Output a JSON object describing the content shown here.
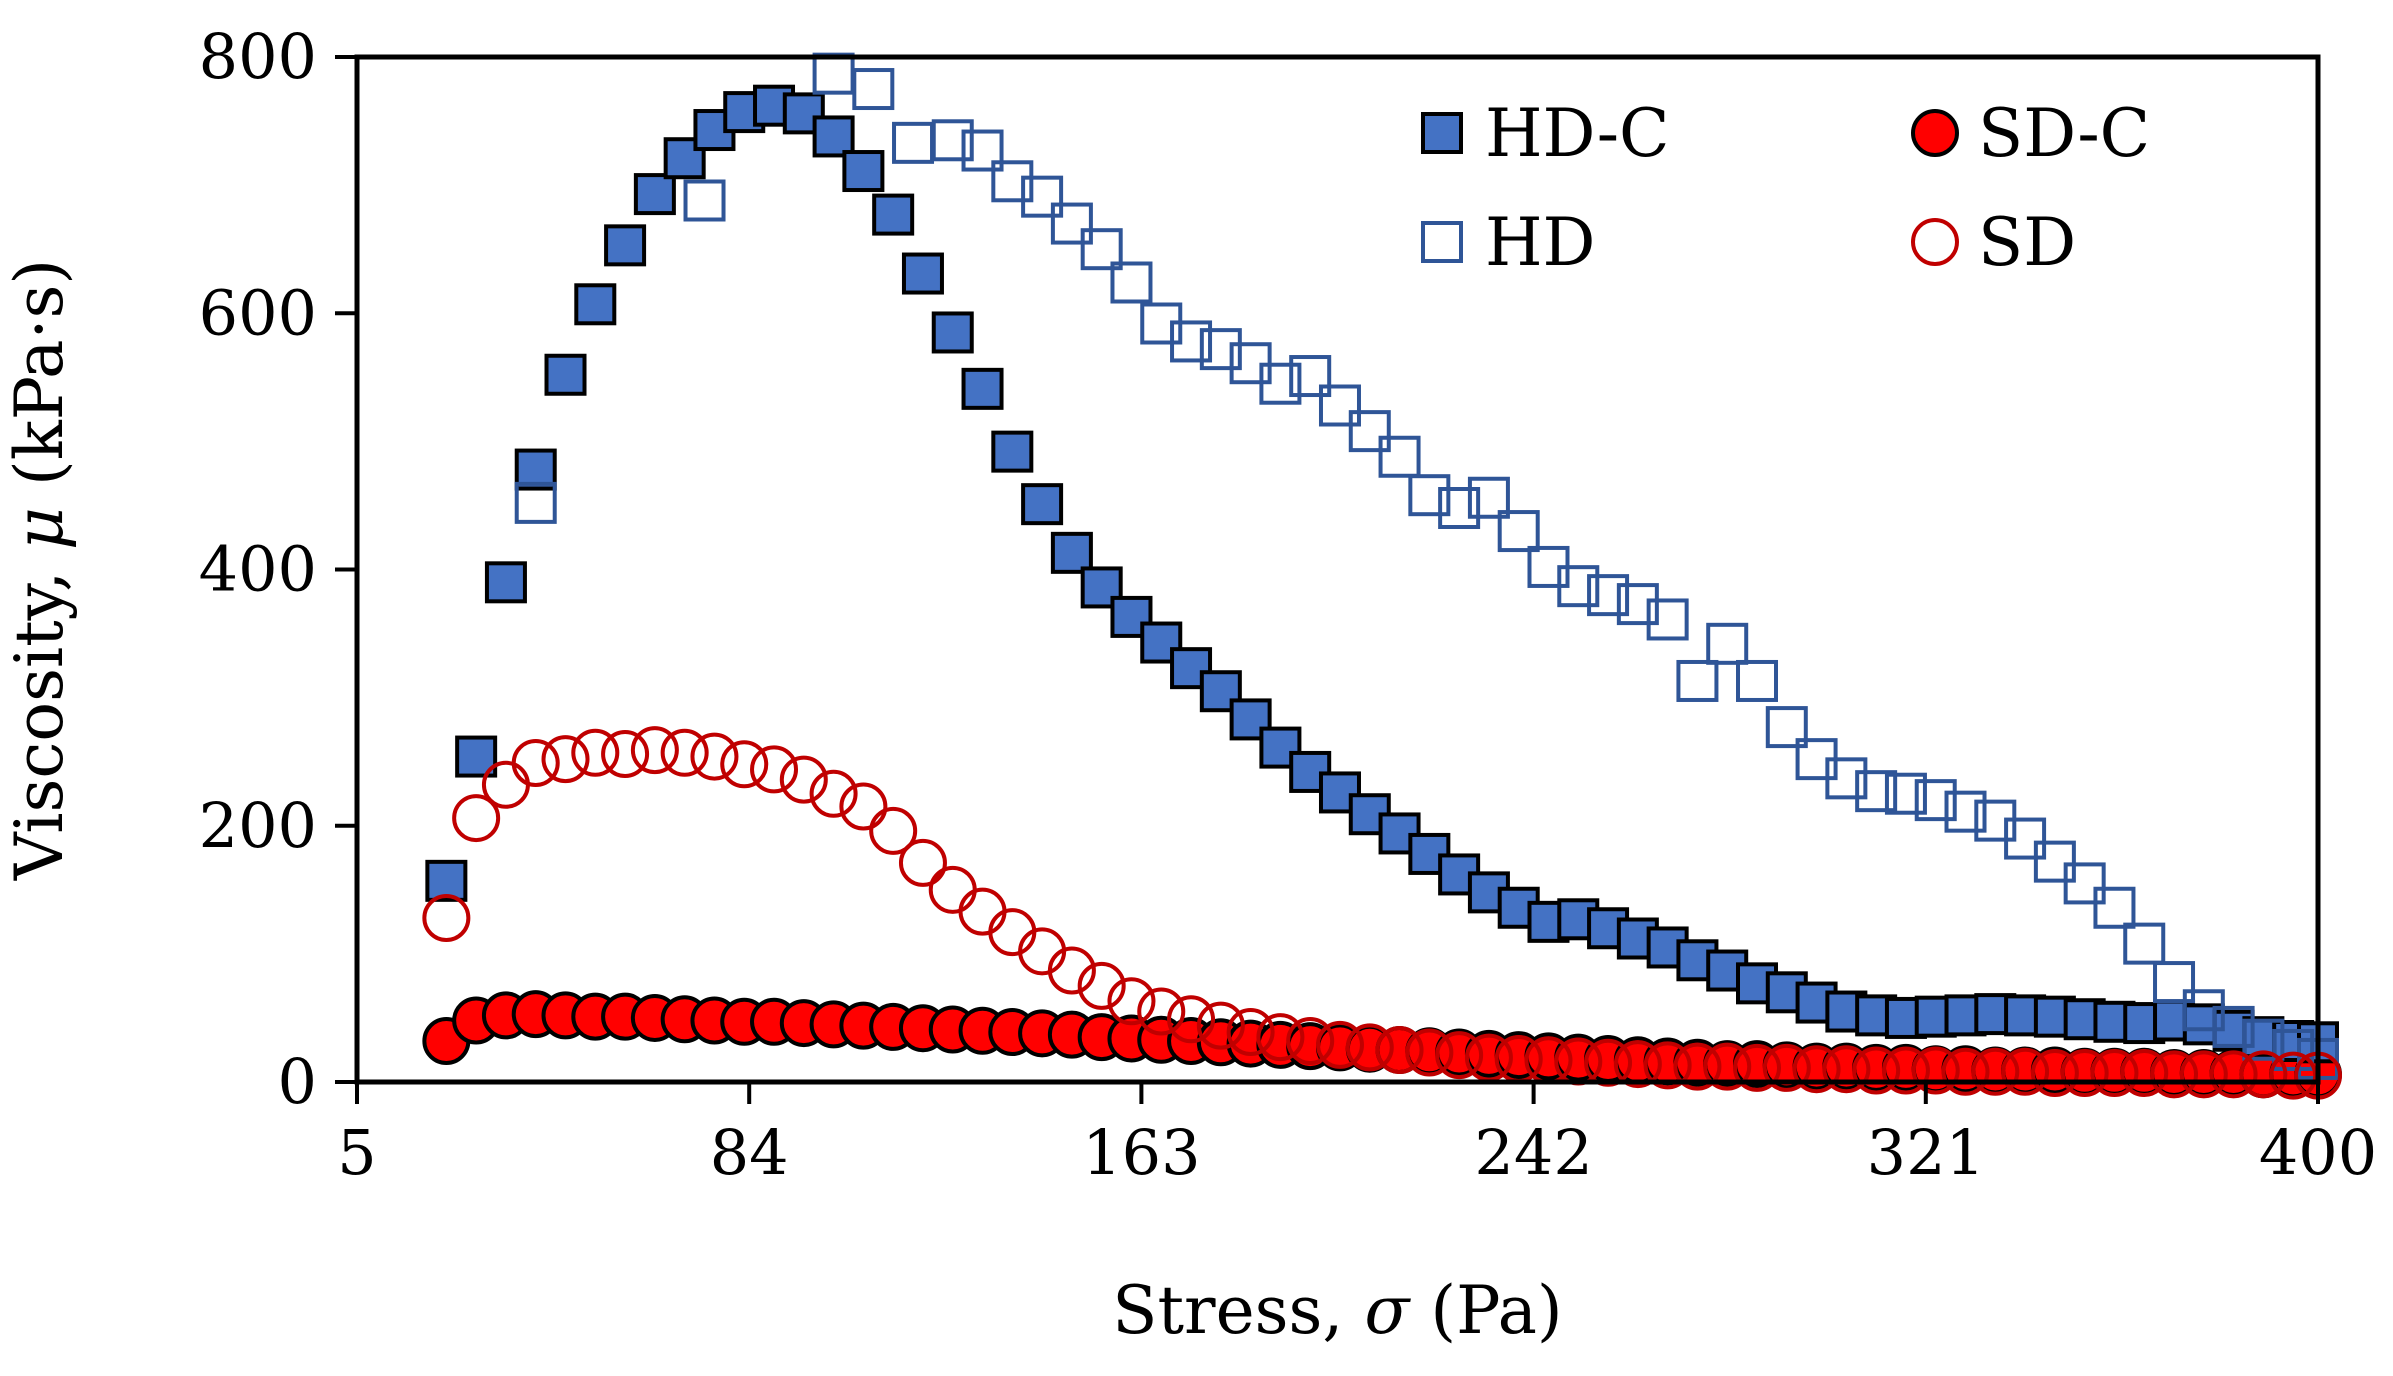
{
  "chart_data": {
    "type": "scatter",
    "title": "",
    "xlabel": "Stress, σ (Pa)",
    "xlabel_parts": {
      "prefix": "Stress, ",
      "symbol": "σ",
      "suffix": " (Pa)"
    },
    "ylabel": "Viscosity, μ (kPa·s)",
    "ylabel_parts": {
      "prefix": "Viscosity, ",
      "symbol": "μ",
      "suffix": " (kPa·s)"
    },
    "xlim": [
      5,
      400
    ],
    "ylim": [
      0,
      800
    ],
    "xticks": [
      "5",
      "84",
      "163",
      "242",
      "321",
      "400"
    ],
    "yticks": [
      "0",
      "200",
      "400",
      "600",
      "800"
    ],
    "xtick_values": [
      5,
      84,
      163,
      242,
      321,
      400
    ],
    "ytick_values": [
      0,
      200,
      400,
      600,
      800
    ],
    "grid": false,
    "legend_position": "top-right",
    "colors": {
      "blue_fill": "#4472C4",
      "blue_edge": "#2F5597",
      "red_fill": "#FF0000",
      "red_edge": "#C00000"
    },
    "series": [
      {
        "name": "HD-C",
        "marker": "square-filled",
        "x": [
          23,
          29,
          35,
          41,
          47,
          53,
          59,
          65,
          71,
          77,
          83,
          89,
          95,
          101,
          107,
          113,
          119,
          125,
          131,
          137,
          143,
          149,
          155,
          161,
          167,
          173,
          179,
          185,
          191,
          197,
          203,
          209,
          215,
          221,
          227,
          233,
          239,
          245,
          251,
          257,
          263,
          269,
          275,
          281,
          287,
          293,
          299,
          305,
          311,
          317,
          323,
          329,
          335,
          341,
          347,
          353,
          359,
          365,
          371,
          377,
          383,
          389,
          395,
          400
        ],
        "y": [
          157,
          254,
          390,
          478,
          552,
          607,
          653,
          693,
          721,
          743,
          757,
          762,
          756,
          738,
          711,
          677,
          631,
          585,
          541,
          492,
          451,
          413,
          386,
          363,
          343,
          323,
          305,
          283,
          261,
          242,
          226,
          209,
          194,
          178,
          162,
          148,
          136,
          125,
          127,
          120,
          112,
          105,
          95,
          87,
          77,
          70,
          62,
          55,
          52,
          50,
          51,
          52,
          53,
          52,
          51,
          49,
          47,
          46,
          48,
          45,
          40,
          35,
          32,
          31
        ]
      },
      {
        "name": "HD",
        "marker": "square-open",
        "x": [
          41,
          75,
          101,
          109,
          117,
          125,
          131,
          137,
          143,
          149,
          155,
          161,
          167,
          173,
          179,
          185,
          191,
          197,
          203,
          209,
          215,
          221,
          227,
          233,
          239,
          245,
          251,
          257,
          263,
          269,
          275,
          281,
          287,
          293,
          299,
          305,
          311,
          317,
          323,
          329,
          335,
          341,
          347,
          353,
          359,
          365,
          371,
          377,
          383,
          389,
          395,
          400
        ],
        "y": [
          452,
          688,
          787,
          775,
          733,
          735,
          727,
          703,
          691,
          670,
          650,
          624,
          592,
          578,
          572,
          561,
          545,
          551,
          528,
          508,
          488,
          458,
          448,
          456,
          430,
          402,
          387,
          380,
          373,
          361,
          313,
          342,
          313,
          277,
          252,
          237,
          227,
          225,
          220,
          211,
          204,
          190,
          172,
          155,
          136,
          108,
          78,
          56,
          43,
          33,
          25,
          18
        ]
      },
      {
        "name": "SD-C",
        "marker": "circle-filled",
        "x": [
          23,
          29,
          35,
          41,
          47,
          53,
          59,
          65,
          71,
          77,
          83,
          89,
          95,
          101,
          107,
          113,
          119,
          125,
          131,
          137,
          143,
          149,
          155,
          161,
          167,
          173,
          179,
          185,
          191,
          197,
          203,
          209,
          215,
          221,
          227,
          233,
          239,
          245,
          251,
          257,
          263,
          269,
          275,
          281,
          287,
          293,
          299,
          305,
          311,
          317,
          323,
          329,
          335,
          341,
          347,
          353,
          359,
          365,
          371,
          377,
          383,
          389,
          395,
          400
        ],
        "y": [
          32,
          48,
          52,
          53,
          52,
          51,
          51,
          50,
          49,
          48,
          47,
          47,
          46,
          45,
          44,
          43,
          42,
          41,
          40,
          39,
          38,
          37,
          35,
          34,
          33,
          32,
          31,
          30,
          29,
          28,
          27,
          26,
          25,
          24,
          23,
          22,
          21,
          20,
          19,
          18,
          17,
          16,
          15,
          14,
          14,
          13,
          12,
          12,
          11,
          11,
          10,
          10,
          9,
          9,
          9,
          8,
          8,
          8,
          7,
          7,
          7,
          6,
          6,
          6
        ]
      },
      {
        "name": "SD",
        "marker": "circle-open",
        "x": [
          23,
          29,
          35,
          41,
          47,
          53,
          59,
          65,
          71,
          77,
          83,
          89,
          95,
          101,
          107,
          113,
          119,
          125,
          131,
          137,
          143,
          149,
          155,
          161,
          167,
          173,
          179,
          185,
          191,
          197,
          203,
          209,
          215,
          221,
          227,
          233,
          239,
          245,
          251,
          257,
          263,
          269,
          275,
          281,
          287,
          293,
          299,
          305,
          311,
          317,
          323,
          329,
          335,
          341,
          347,
          353,
          359,
          365,
          371,
          377,
          383,
          389,
          395,
          400
        ],
        "y": [
          128,
          206,
          232,
          249,
          252,
          257,
          256,
          259,
          257,
          254,
          248,
          244,
          236,
          225,
          215,
          196,
          171,
          150,
          133,
          117,
          102,
          87,
          75,
          63,
          55,
          49,
          44,
          39,
          35,
          32,
          29,
          27,
          25,
          23,
          21,
          19,
          18,
          17,
          16,
          15,
          14,
          13,
          12,
          12,
          11,
          11,
          10,
          10,
          9,
          9,
          9,
          8,
          8,
          8,
          7,
          7,
          7,
          7,
          6,
          6,
          6,
          6,
          5,
          5
        ]
      }
    ]
  }
}
